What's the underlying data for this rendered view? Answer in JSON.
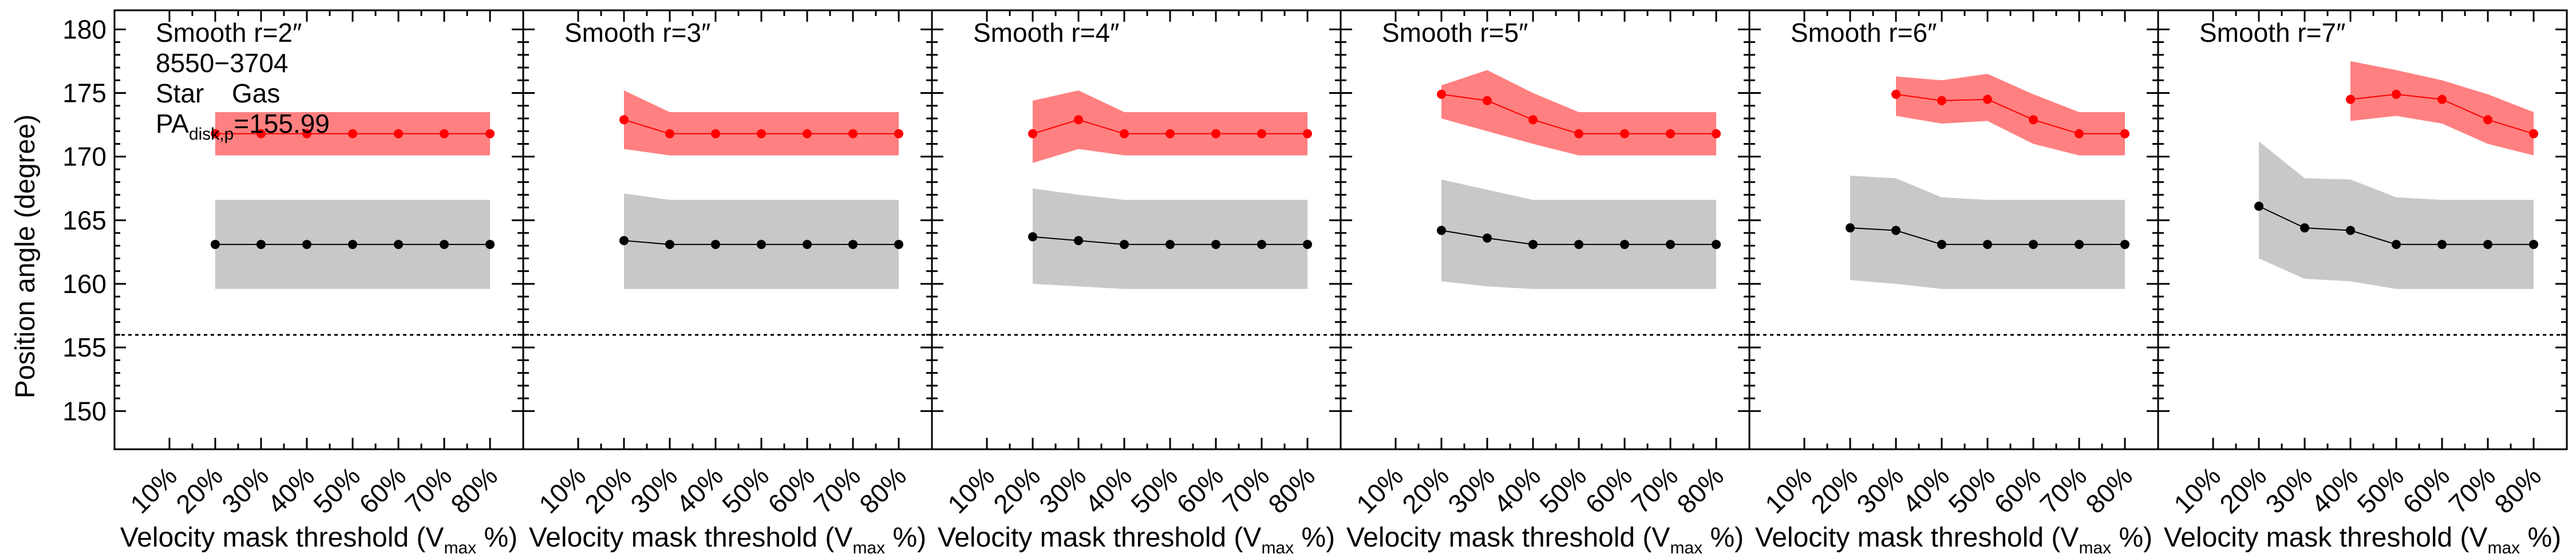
{
  "chart_data": {
    "type": "line",
    "ylabel": "Position angle (degree)",
    "xlabel_main": "Velocity mask threshold (V",
    "xlabel_sub": "max",
    "xlabel_end": " %)",
    "ylim": [
      147,
      181.5
    ],
    "yticks": [
      150,
      155,
      160,
      165,
      170,
      175,
      180
    ],
    "xcategories": [
      "10%",
      "20%",
      "30%",
      "40%",
      "50%",
      "60%",
      "70%",
      "80%"
    ],
    "reference_pa": 155.99,
    "galaxy_id": "8550−3704",
    "legend": {
      "star": "Star",
      "gas": "Gas"
    },
    "pa_label": {
      "main": "PA",
      "sub": "disk,p",
      "value": "=155.99"
    },
    "colors": {
      "star_line": "#000000",
      "star_band": "#c8c8c8",
      "gas_line": "#ff0000",
      "gas_band": "#ff8080"
    },
    "panels": [
      {
        "label": "Smooth r=2″",
        "x": [
          "20%",
          "30%",
          "40%",
          "50%",
          "60%",
          "70%",
          "80%"
        ],
        "star": [
          163.1,
          163.1,
          163.1,
          163.1,
          163.1,
          163.1,
          163.1
        ],
        "star_low": [
          159.6,
          159.6,
          159.6,
          159.6,
          159.6,
          159.6,
          159.6
        ],
        "star_high": [
          166.6,
          166.6,
          166.6,
          166.6,
          166.6,
          166.6,
          166.6
        ],
        "gas": [
          171.8,
          171.8,
          171.8,
          171.8,
          171.8,
          171.8,
          171.8
        ],
        "gas_low": [
          170.1,
          170.1,
          170.1,
          170.1,
          170.1,
          170.1,
          170.1
        ],
        "gas_high": [
          173.5,
          173.5,
          173.5,
          173.5,
          173.5,
          173.5,
          173.5
        ]
      },
      {
        "label": "Smooth r=3″",
        "x": [
          "20%",
          "30%",
          "40%",
          "50%",
          "60%",
          "70%",
          "80%"
        ],
        "star": [
          163.4,
          163.1,
          163.1,
          163.1,
          163.1,
          163.1,
          163.1
        ],
        "star_low": [
          159.6,
          159.6,
          159.6,
          159.6,
          159.6,
          159.6,
          159.6
        ],
        "star_high": [
          167.1,
          166.6,
          166.6,
          166.6,
          166.6,
          166.6,
          166.6
        ],
        "gas": [
          172.9,
          171.8,
          171.8,
          171.8,
          171.8,
          171.8,
          171.8
        ],
        "gas_low": [
          170.6,
          170.1,
          170.1,
          170.1,
          170.1,
          170.1,
          170.1
        ],
        "gas_high": [
          175.2,
          173.5,
          173.5,
          173.5,
          173.5,
          173.5,
          173.5
        ]
      },
      {
        "label": "Smooth r=4″",
        "x": [
          "20%",
          "30%",
          "40%",
          "50%",
          "60%",
          "70%",
          "80%"
        ],
        "star": [
          163.7,
          163.4,
          163.1,
          163.1,
          163.1,
          163.1,
          163.1
        ],
        "star_low": [
          160.0,
          159.8,
          159.6,
          159.6,
          159.6,
          159.6,
          159.6
        ],
        "star_high": [
          167.5,
          167.0,
          166.6,
          166.6,
          166.6,
          166.6,
          166.6
        ],
        "gas": [
          171.8,
          172.9,
          171.8,
          171.8,
          171.8,
          171.8,
          171.8
        ],
        "gas_low": [
          169.5,
          170.6,
          170.1,
          170.1,
          170.1,
          170.1,
          170.1
        ],
        "gas_high": [
          174.4,
          175.2,
          173.5,
          173.5,
          173.5,
          173.5,
          173.5
        ]
      },
      {
        "label": "Smooth r=5″",
        "x": [
          "20%",
          "30%",
          "40%",
          "50%",
          "60%",
          "70%",
          "80%"
        ],
        "star": [
          164.2,
          163.6,
          163.1,
          163.1,
          163.1,
          163.1,
          163.1
        ],
        "star_low": [
          160.2,
          159.8,
          159.6,
          159.6,
          159.6,
          159.6,
          159.6
        ],
        "star_high": [
          168.2,
          167.4,
          166.6,
          166.6,
          166.6,
          166.6,
          166.6
        ],
        "gas": [
          174.9,
          174.4,
          172.9,
          171.8,
          171.8,
          171.8,
          171.8
        ],
        "gas_low": [
          173.0,
          172.0,
          171.0,
          170.1,
          170.1,
          170.1,
          170.1
        ],
        "gas_high": [
          175.6,
          176.8,
          175.0,
          173.5,
          173.5,
          173.5,
          173.5
        ]
      },
      {
        "label": "Smooth r=6″",
        "x": [
          "20%",
          "30%",
          "40%",
          "50%",
          "60%",
          "70%",
          "80%"
        ],
        "star": [
          164.4,
          164.2,
          163.1,
          163.1,
          163.1,
          163.1,
          163.1
        ],
        "star_low": [
          160.3,
          160.0,
          159.6,
          159.6,
          159.6,
          159.6,
          159.6
        ],
        "star_high": [
          168.5,
          168.3,
          166.8,
          166.6,
          166.6,
          166.6,
          166.6
        ],
        "gas": [
          null,
          174.9,
          174.4,
          174.5,
          172.9,
          171.8,
          171.8
        ],
        "gas_low": [
          null,
          173.2,
          172.6,
          172.8,
          171.0,
          170.1,
          170.1
        ],
        "gas_high": [
          null,
          176.3,
          176.0,
          176.5,
          174.9,
          173.5,
          173.5
        ]
      },
      {
        "label": "Smooth r=7″",
        "x": [
          "20%",
          "30%",
          "40%",
          "50%",
          "60%",
          "70%",
          "80%"
        ],
        "star": [
          166.1,
          164.4,
          164.2,
          163.1,
          163.1,
          163.1,
          163.1
        ],
        "star_low": [
          162.0,
          160.4,
          160.2,
          159.6,
          159.6,
          159.6,
          159.6
        ],
        "star_high": [
          171.2,
          168.3,
          168.2,
          166.8,
          166.6,
          166.6,
          166.6
        ],
        "gas": [
          null,
          null,
          174.5,
          174.9,
          174.5,
          172.9,
          171.8
        ],
        "gas_low": [
          null,
          null,
          172.8,
          173.2,
          172.6,
          171.0,
          170.1
        ],
        "gas_high": [
          null,
          null,
          177.5,
          176.8,
          176.0,
          174.9,
          173.5
        ]
      }
    ]
  }
}
